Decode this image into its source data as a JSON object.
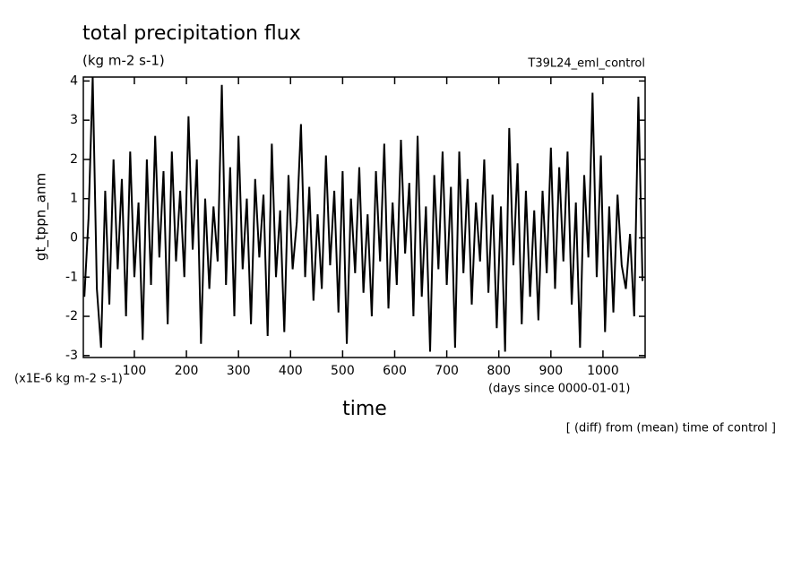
{
  "chart_data": {
    "type": "line",
    "title": "total precipitation flux",
    "subtitle": "(kg m-2 s-1)",
    "run_label": "T39L24_eml_control",
    "y_label": "gt_tppn_anm",
    "y_unit": "(x1E-6 kg m-2 s-1)",
    "x_label": "time",
    "x_unit": "(days since 0000-01-01)",
    "footnote": "[ (diff) from (mean) time of control ]",
    "color": "#000000",
    "xlim": [
      2,
      1081
    ],
    "ylim": [
      -3.05,
      4.1
    ],
    "xticks": [
      100,
      200,
      300,
      400,
      500,
      600,
      700,
      800,
      900,
      1000
    ],
    "yticks": [
      -3,
      -2,
      -1,
      0,
      1,
      2,
      3,
      4
    ],
    "x": [
      4,
      12,
      20,
      28,
      36,
      44,
      52,
      60,
      68,
      76,
      84,
      92,
      100,
      108,
      116,
      124,
      132,
      140,
      148,
      156,
      164,
      172,
      180,
      188,
      196,
      204,
      212,
      220,
      228,
      236,
      244,
      252,
      260,
      268,
      276,
      284,
      292,
      300,
      308,
      316,
      324,
      332,
      340,
      348,
      356,
      364,
      372,
      380,
      388,
      396,
      404,
      412,
      420,
      428,
      436,
      444,
      452,
      460,
      468,
      476,
      484,
      492,
      500,
      508,
      516,
      524,
      532,
      540,
      548,
      556,
      564,
      572,
      580,
      588,
      596,
      604,
      612,
      620,
      628,
      636,
      644,
      652,
      660,
      668,
      676,
      684,
      692,
      700,
      708,
      716,
      724,
      732,
      740,
      748,
      756,
      764,
      772,
      780,
      788,
      796,
      804,
      812,
      820,
      828,
      836,
      844,
      852,
      860,
      868,
      876,
      884,
      892,
      900,
      908,
      916,
      924,
      932,
      940,
      948,
      956,
      964,
      972,
      980,
      988,
      996,
      1004,
      1012,
      1020,
      1028,
      1036,
      1044,
      1052,
      1060,
      1068,
      1076
    ],
    "values": [
      -1.5,
      0.5,
      4.1,
      -1.3,
      -2.8,
      1.2,
      -1.7,
      2.0,
      -0.8,
      1.5,
      -2.0,
      2.2,
      -1.0,
      0.9,
      -2.6,
      2.0,
      -1.2,
      2.6,
      -0.5,
      1.7,
      -2.2,
      2.2,
      -0.6,
      1.2,
      -1.0,
      3.1,
      -0.3,
      2.0,
      -2.7,
      1.0,
      -1.3,
      0.8,
      -0.6,
      3.9,
      -1.2,
      1.8,
      -2.0,
      2.6,
      -0.8,
      1.0,
      -2.2,
      1.5,
      -0.5,
      1.1,
      -2.5,
      2.4,
      -1.0,
      0.7,
      -2.4,
      1.6,
      -0.8,
      0.4,
      2.9,
      -1.0,
      1.3,
      -1.6,
      0.6,
      -1.3,
      2.1,
      -0.7,
      1.2,
      -1.9,
      1.7,
      -2.7,
      1.0,
      -0.9,
      1.8,
      -1.4,
      0.6,
      -2.0,
      1.7,
      -0.6,
      2.4,
      -1.8,
      0.9,
      -1.2,
      2.5,
      -0.4,
      1.4,
      -2.0,
      2.6,
      -1.5,
      0.8,
      -2.9,
      1.6,
      -0.8,
      2.2,
      -1.2,
      1.3,
      -2.8,
      2.2,
      -0.9,
      1.5,
      -1.7,
      0.9,
      -0.6,
      2.0,
      -1.4,
      1.1,
      -2.3,
      0.8,
      -2.9,
      2.8,
      -0.7,
      1.9,
      -2.2,
      1.2,
      -1.5,
      0.7,
      -2.1,
      1.2,
      -0.9,
      2.3,
      -1.3,
      1.8,
      -0.6,
      2.2,
      -1.7,
      0.9,
      -2.8,
      1.6,
      -0.5,
      3.7,
      -1.0,
      2.1,
      -2.4,
      0.8,
      -1.9,
      1.1,
      -0.7,
      -1.3,
      0.1,
      -2.0,
      3.6,
      -1.1
    ]
  }
}
